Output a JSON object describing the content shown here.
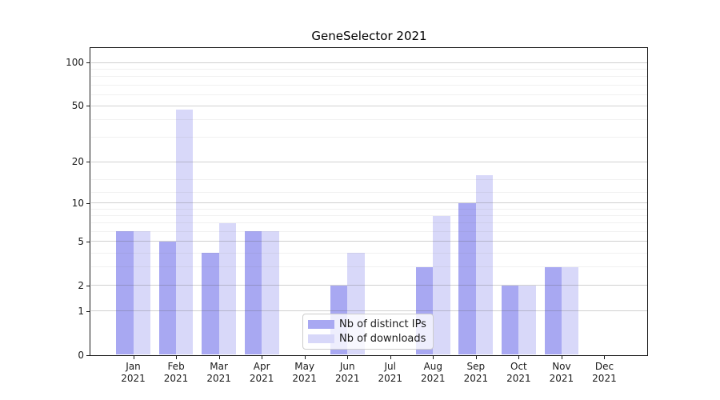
{
  "chart_data": {
    "type": "bar",
    "title": "GeneSelector 2021",
    "categories": [
      [
        "Jan",
        "2021"
      ],
      [
        "Feb",
        "2021"
      ],
      [
        "Mar",
        "2021"
      ],
      [
        "Apr",
        "2021"
      ],
      [
        "May",
        "2021"
      ],
      [
        "Jun",
        "2021"
      ],
      [
        "Jul",
        "2021"
      ],
      [
        "Aug",
        "2021"
      ],
      [
        "Sep",
        "2021"
      ],
      [
        "Oct",
        "2021"
      ],
      [
        "Nov",
        "2021"
      ],
      [
        "Dec",
        "2021"
      ]
    ],
    "series": [
      {
        "name": "Nb of distinct IPs",
        "color": "#a8a8f2",
        "values": [
          6,
          5,
          4,
          6,
          0,
          2,
          0,
          3,
          10,
          2,
          3,
          0
        ]
      },
      {
        "name": "Nb of downloads",
        "color": "#d8d8f9",
        "values": [
          6,
          47,
          7,
          6,
          0,
          4,
          0,
          8,
          16,
          2,
          3,
          0
        ]
      }
    ],
    "xlabel": "",
    "ylabel": "",
    "y_axis": {
      "scale": "log1p",
      "ylim": [
        0,
        126
      ],
      "major_ticks": [
        0,
        1,
        2,
        5,
        10,
        20,
        50,
        100
      ],
      "minor_gridlines": [
        3,
        4,
        6,
        7,
        8,
        9,
        12,
        15,
        30,
        40,
        60,
        70,
        80,
        90
      ]
    },
    "grid": "on",
    "legend_position": "lower center-left inside plot"
  }
}
